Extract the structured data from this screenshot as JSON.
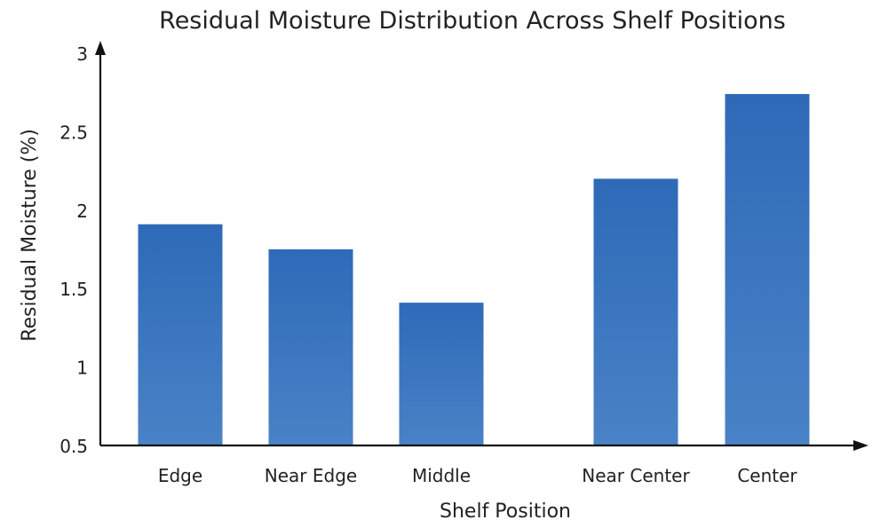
{
  "chart_data": {
    "type": "bar",
    "title": "Residual Moisture Distribution Across Shelf Positions",
    "xlabel": "Shelf Position",
    "ylabel": "Residual Moisture (%)",
    "categories": [
      "Edge",
      "Near Edge",
      "Middle",
      "Near Center",
      "Center"
    ],
    "values": [
      1.91,
      1.75,
      1.41,
      2.2,
      2.74
    ],
    "ylim": [
      0.5,
      3
    ],
    "yticks": [
      "0.5",
      "1",
      "1.5",
      "2",
      "2.5",
      "3"
    ],
    "grid": false,
    "legend": "none",
    "colors": {
      "bar_top": "#2e6ab8",
      "bar_bottom": "#4a82c6",
      "axis": "#111111"
    }
  }
}
